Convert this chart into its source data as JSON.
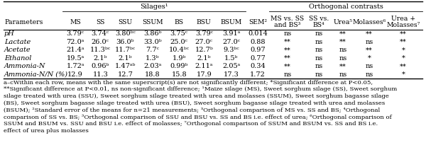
{
  "title_silages": "Silages¹",
  "title_orthogonal": "Orthogonal contrasts",
  "col_headers": [
    "MS",
    "SS",
    "SSU",
    "SSUM",
    "BS",
    "BSU",
    "BSUM",
    "SEM²",
    "MS vs. SS\nand BS³",
    "SS vs.\nBS⁴",
    "Urea⁵",
    "Molasses⁶",
    "Urea +\nMolasses⁷"
  ],
  "parameters": [
    "pH",
    "Lactate",
    "Acetate",
    "Ethanol",
    "Ammonia-N",
    "Ammonia-N/N (%)"
  ],
  "data": [
    [
      "3.79ᶜ",
      "3.74ᶜ",
      "3.80ᵇᶜ",
      "3.86ᵇ",
      "3.75ᶜ",
      "3.79ᶜ",
      "3.91ᵃ",
      "0.014",
      "ns",
      "ns",
      "**",
      "**",
      "**"
    ],
    [
      "72.0ᵃ",
      "26.0ᶜ",
      "36.0ᵇ",
      "33.0ᵇ",
      "25.0ᶜ",
      "27.0ᶜ",
      "27.0ᶜ",
      "0.88",
      "**",
      "ns",
      "**",
      "ns",
      "**"
    ],
    [
      "21.4ᵃ",
      "11.3ᵇᶜ",
      "11.7ᵇᶜ",
      "7.7ᶜ",
      "10.4ᵇᶜ",
      "12.7ᵇ",
      "9.3ᵇᶜ",
      "0.97",
      "**",
      "ns",
      "ns",
      "**",
      "*"
    ],
    [
      "19.5ᵃ",
      "2.1ᵇ",
      "2.1ᵇ",
      "1.3ᵇ",
      "1.9ᵇ",
      "2.1ᵇ",
      "1.5ᵇ",
      "0.77",
      "**",
      "ns",
      "ns",
      "*",
      "*"
    ],
    [
      "1.72ᵃ",
      "0.96ᵇ",
      "1.47ᵃᵇ",
      "2.03ᵃ",
      "0.99ᵇ",
      "2.11ᵃ",
      "2.05ᵃ",
      "0.34",
      "**",
      "ns",
      "**",
      "ns",
      "**"
    ],
    [
      "12.9",
      "11.3",
      "12.7",
      "18.8",
      "15.8",
      "17.9",
      "17.3",
      "1.72",
      "ns",
      "ns",
      "ns",
      "ns",
      "*"
    ]
  ],
  "footnote_lines": [
    "a–cWithin each row, means with the same superscript(s) are not significantly different; *Significant difference at P<0.05,",
    "**Significant difference at P<0.01, ns non-significant difference; ¹Maize silage (MS), Sweet sorghum silage (SS), Sweet sorghum",
    "silage treated with urea (SSU), Sweet sorghum silage treated with urea and molasses (SSUM), Sweet sorghum bagasse silage",
    "(BS), Sweet sorghum bagasse silage treated with urea (BSU), Sweet sorghum bagasse silage treated with urea and molasses",
    "(BSUM); ²Standard error of the means for n=21 measurements; ³Orthogonal comparison of MS vs. SS and BS; ⁴Orthogonal",
    "comparison of SS vs. BS; ⁵Orthogonal comparison of SSU and BSU vs. SS and BS i.e. effect of urea; ⁶Orthogonal comparison of",
    "SSUM and BSUM vs. SSU and BSU i.e. effect of molasses; ⁷Orthogonal comparison of SSUM and BSUM vs. SS and BS i.e.",
    "effect of urea plus molasses"
  ],
  "bg_color": "#ffffff",
  "line_color": "#000000",
  "font_size": 7.0,
  "footnote_font_size": 6.1
}
